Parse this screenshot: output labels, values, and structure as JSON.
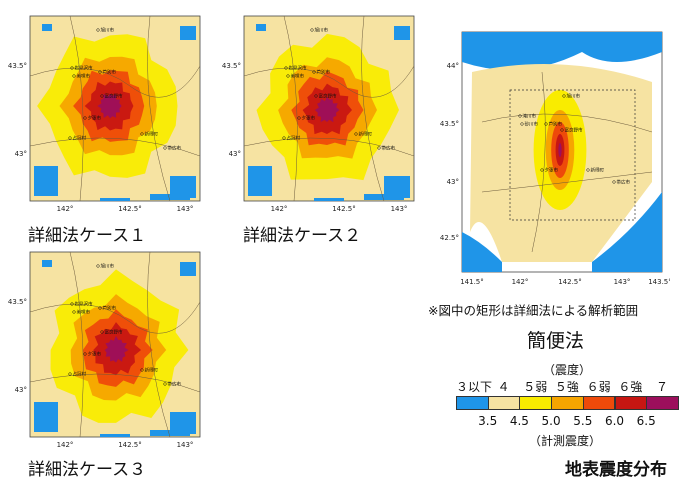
{
  "detailed_maps": [
    {
      "caption": "詳細法ケース１",
      "lon_ticks": [
        "142°",
        "142.5°",
        "143°"
      ],
      "lat_ticks": [
        "43.5°",
        "43°"
      ],
      "cities": [
        "旭川市",
        "岩見沢市",
        "美唄市",
        "芦別市",
        "夕張市",
        "富良野市",
        "帯広市",
        "新得町",
        "占冠村"
      ]
    },
    {
      "caption": "詳細法ケース２",
      "lon_ticks": [
        "142°",
        "142.5°",
        "143°"
      ],
      "lat_ticks": [
        "43.5°",
        "43°"
      ],
      "cities": [
        "旭川市",
        "岩見沢市",
        "美唄市",
        "芦別市",
        "夕張市",
        "富良野市",
        "帯広市",
        "新得町",
        "占冠村"
      ]
    },
    {
      "caption": "詳細法ケース３",
      "lon_ticks": [
        "142°",
        "142.5°",
        "143°"
      ],
      "lat_ticks": [
        "43.5°",
        "43°"
      ],
      "cities": [
        "旭川市",
        "岩見沢市",
        "美唄市",
        "芦別市",
        "夕張市",
        "富良野市",
        "帯広市",
        "新得町",
        "占冠村"
      ]
    }
  ],
  "simple_map": {
    "lon_ticks": [
      "141.5°",
      "142°",
      "142.5°",
      "143°",
      "143.5°"
    ],
    "lat_ticks": [
      "44°",
      "43.5°",
      "43°",
      "42.5°"
    ],
    "cities": [
      "旭川市",
      "滝川市",
      "砂川市",
      "芦別市",
      "富良野市",
      "夕張市",
      "帯広市",
      "新得町"
    ],
    "note": "※図中の矩形は詳細法による解析範囲",
    "caption": "簡便法"
  },
  "legend": {
    "scale_title": "（震度）",
    "intensity_labels": [
      "３以下",
      "４",
      "５弱",
      "５強",
      "６弱",
      "６強",
      "７"
    ],
    "colors": [
      "#1f95e8",
      "#f6e3a2",
      "#f9ec00",
      "#f6a500",
      "#ee4a0a",
      "#c71612",
      "#9c0f5c"
    ],
    "instrument_ticks": [
      "3.5",
      "4.5",
      "5.0",
      "5.5",
      "6.0",
      "6.5"
    ],
    "instrument_title": "（計測震度）"
  },
  "figure_title": "地表震度分布"
}
